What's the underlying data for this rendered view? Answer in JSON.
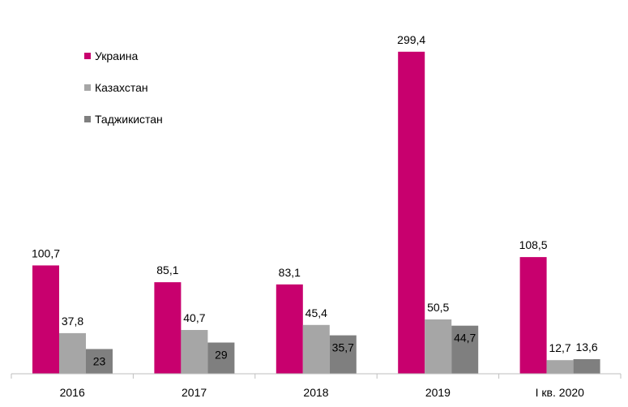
{
  "chart_data": {
    "type": "bar",
    "categories": [
      "2016",
      "2017",
      "2018",
      "2019",
      "I кв. 2020"
    ],
    "series": [
      {
        "name": "Украина",
        "values": [
          100.7,
          85.1,
          83.1,
          299.4,
          108.5
        ],
        "labels": [
          "100,7",
          "85,1",
          "83,1",
          "299,4",
          "108,5"
        ],
        "color": "#C8006E"
      },
      {
        "name": "Казахстан",
        "values": [
          37.8,
          40.7,
          45.4,
          50.5,
          12.7
        ],
        "labels": [
          "37,8",
          "40,7",
          "45,4",
          "50,5",
          "12,7"
        ],
        "color": "#A6A6A6"
      },
      {
        "name": "Таджикистан",
        "values": [
          23,
          29,
          35.7,
          44.7,
          13.6
        ],
        "labels": [
          "23",
          "29",
          "35,7",
          "44,7",
          "13,6"
        ],
        "color": "#7F7F7F"
      }
    ],
    "title": "",
    "xlabel": "",
    "ylabel": "",
    "ylim": [
      0,
      300
    ],
    "grid": false,
    "legend_position": "top-left",
    "axis_color": "#BFBFBF"
  }
}
